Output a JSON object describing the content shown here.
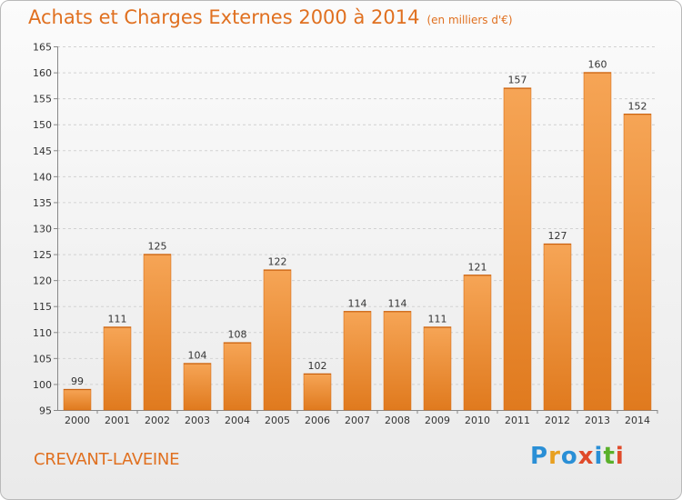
{
  "header": {
    "title": "Achats et Charges Externes 2000 à 2014",
    "subtitle": "(en milliers d'€)"
  },
  "footer": {
    "commune": "CREVANT-LAVEINE",
    "logo_letters": [
      "P",
      "r",
      "o",
      "x",
      "i",
      "t",
      "i"
    ],
    "logo_colors": [
      "#2a8fd6",
      "#e8a020",
      "#2a8fd6",
      "#e04a2a",
      "#2a8fd6",
      "#5ab02a",
      "#e04a2a"
    ]
  },
  "chart_data": {
    "type": "bar",
    "title": "Achats et Charges Externes 2000 à 2014",
    "subtitle": "(en milliers d'€)",
    "categories": [
      "2000",
      "2001",
      "2002",
      "2003",
      "2004",
      "2005",
      "2006",
      "2007",
      "2008",
      "2009",
      "2010",
      "2011",
      "2012",
      "2013",
      "2014"
    ],
    "values": [
      99,
      111,
      125,
      104,
      108,
      122,
      102,
      114,
      114,
      111,
      121,
      157,
      127,
      160,
      152
    ],
    "ylim": [
      95,
      165
    ],
    "yticks": [
      95,
      100,
      105,
      110,
      115,
      120,
      125,
      130,
      135,
      140,
      145,
      150,
      155,
      160,
      165
    ],
    "grid": true,
    "bar_color_top": "#f6a556",
    "bar_color_bottom": "#e07a1e"
  }
}
